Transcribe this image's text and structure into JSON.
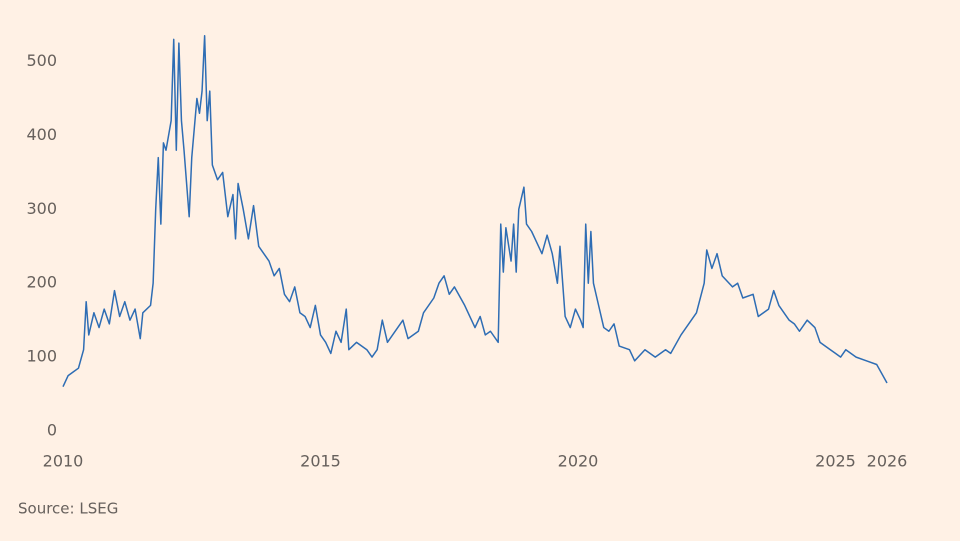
{
  "chart_data": {
    "type": "line",
    "source": "Source: LSEG",
    "x": [
      2010.0,
      2010.1,
      2010.2,
      2010.3,
      2010.4,
      2010.45,
      2010.5,
      2010.6,
      2010.7,
      2010.8,
      2010.9,
      2011.0,
      2011.1,
      2011.2,
      2011.3,
      2011.4,
      2011.5,
      2011.55,
      2011.7,
      2011.75,
      2011.8,
      2011.85,
      2011.9,
      2011.95,
      2012.0,
      2012.1,
      2012.15,
      2012.2,
      2012.25,
      2012.3,
      2012.35,
      2012.45,
      2012.5,
      2012.6,
      2012.65,
      2012.7,
      2012.75,
      2012.8,
      2012.85,
      2012.9,
      2013.0,
      2013.1,
      2013.2,
      2013.3,
      2013.35,
      2013.4,
      2013.5,
      2013.6,
      2013.7,
      2013.8,
      2013.9,
      2014.0,
      2014.1,
      2014.2,
      2014.3,
      2014.4,
      2014.5,
      2014.6,
      2014.7,
      2014.8,
      2014.9,
      2015.0,
      2015.1,
      2015.2,
      2015.3,
      2015.4,
      2015.5,
      2015.55,
      2015.7,
      2015.9,
      2016.0,
      2016.1,
      2016.2,
      2016.3,
      2016.4,
      2016.6,
      2016.7,
      2016.9,
      2017.0,
      2017.2,
      2017.3,
      2017.4,
      2017.5,
      2017.6,
      2017.8,
      2018.0,
      2018.1,
      2018.2,
      2018.3,
      2018.45,
      2018.5,
      2018.55,
      2018.6,
      2018.7,
      2018.75,
      2018.8,
      2018.85,
      2018.95,
      2019.0,
      2019.1,
      2019.2,
      2019.3,
      2019.4,
      2019.5,
      2019.6,
      2019.65,
      2019.75,
      2019.85,
      2019.95,
      2020.05,
      2020.1,
      2020.15,
      2020.2,
      2020.25,
      2020.3,
      2020.4,
      2020.5,
      2020.6,
      2020.7,
      2020.8,
      2021.0,
      2021.1,
      2021.3,
      2021.5,
      2021.7,
      2021.8,
      2022.0,
      2022.2,
      2022.3,
      2022.45,
      2022.5,
      2022.6,
      2022.7,
      2022.8,
      2023.0,
      2023.1,
      2023.2,
      2023.4,
      2023.5,
      2023.7,
      2023.8,
      2023.9,
      2024.0,
      2024.1,
      2024.2,
      2024.3,
      2024.45,
      2024.6,
      2024.7,
      2024.9,
      2025.0,
      2025.1,
      2025.2,
      2025.4,
      2025.6,
      2025.8,
      2026.0
    ],
    "series": [
      {
        "color": "#2e6db4",
        "values": [
          60,
          75,
          80,
          85,
          110,
          175,
          130,
          160,
          140,
          165,
          145,
          190,
          155,
          175,
          150,
          165,
          125,
          160,
          170,
          200,
          300,
          370,
          280,
          390,
          380,
          420,
          530,
          380,
          525,
          420,
          380,
          290,
          370,
          450,
          430,
          460,
          535,
          420,
          460,
          360,
          340,
          350,
          290,
          320,
          260,
          335,
          300,
          260,
          305,
          250,
          240,
          230,
          210,
          220,
          185,
          175,
          195,
          160,
          155,
          140,
          170,
          130,
          120,
          105,
          135,
          120,
          165,
          110,
          120,
          110,
          100,
          110,
          150,
          120,
          130,
          150,
          125,
          135,
          160,
          180,
          200,
          210,
          185,
          195,
          170,
          140,
          155,
          130,
          135,
          120,
          280,
          215,
          275,
          230,
          280,
          215,
          300,
          330,
          280,
          270,
          255,
          240,
          265,
          240,
          200,
          250,
          155,
          140,
          165,
          150,
          140,
          280,
          200,
          270,
          200,
          170,
          140,
          135,
          145,
          115,
          110,
          95,
          110,
          100,
          110,
          105,
          130,
          150,
          160,
          200,
          245,
          220,
          240,
          210,
          195,
          200,
          180,
          185,
          155,
          165,
          190,
          170,
          160,
          150,
          145,
          135,
          150,
          140,
          120,
          110,
          105,
          100,
          110,
          100,
          95,
          90,
          65
        ]
      }
    ],
    "xlim": [
      2010,
      2026
    ],
    "ylim": [
      0,
      540
    ],
    "xticks": [
      2010,
      2015,
      2020,
      2025,
      2026
    ],
    "yticks": [
      0,
      100,
      200,
      300,
      400,
      500
    ]
  }
}
